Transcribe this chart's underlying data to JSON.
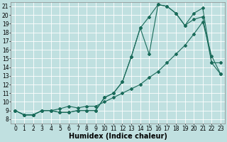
{
  "xlabel": "Humidex (Indice chaleur)",
  "bg_color": "#c0e0e0",
  "line_color": "#1a6b5a",
  "grid_color": "#ffffff",
  "xlim": [
    -0.5,
    23.5
  ],
  "ylim": [
    7.5,
    21.5
  ],
  "xticks": [
    0,
    1,
    2,
    3,
    4,
    5,
    6,
    7,
    8,
    9,
    10,
    11,
    12,
    13,
    14,
    15,
    16,
    17,
    18,
    19,
    20,
    21,
    22,
    23
  ],
  "yticks": [
    8,
    9,
    10,
    11,
    12,
    13,
    14,
    15,
    16,
    17,
    18,
    19,
    20,
    21
  ],
  "line1_x": [
    0,
    1,
    2,
    3,
    4,
    5,
    6,
    7,
    8,
    9,
    10,
    11,
    12,
    13,
    14,
    15,
    16,
    17,
    18,
    19,
    20,
    21,
    22,
    23
  ],
  "line1_y": [
    9.0,
    8.5,
    8.5,
    9.0,
    9.0,
    8.8,
    8.8,
    9.0,
    9.0,
    9.0,
    10.5,
    11.0,
    12.3,
    15.2,
    18.5,
    19.8,
    21.2,
    21.0,
    20.2,
    18.8,
    19.5,
    19.8,
    14.5,
    13.2
  ],
  "line2_x": [
    0,
    1,
    2,
    3,
    4,
    5,
    6,
    7,
    8,
    9,
    10,
    11,
    12,
    13,
    14,
    15,
    16,
    17,
    18,
    19,
    20,
    21,
    22,
    23
  ],
  "line2_y": [
    9.0,
    8.5,
    8.5,
    9.0,
    9.0,
    8.8,
    8.8,
    9.0,
    9.0,
    9.0,
    10.5,
    11.0,
    12.3,
    15.2,
    18.5,
    15.5,
    21.2,
    21.0,
    20.2,
    18.8,
    20.2,
    20.8,
    14.5,
    14.5
  ],
  "line3_x": [
    0,
    1,
    2,
    3,
    4,
    5,
    6,
    7,
    8,
    9,
    10,
    11,
    12,
    13,
    14,
    15,
    16,
    17,
    18,
    19,
    20,
    21,
    22,
    23
  ],
  "line3_y": [
    9.0,
    8.5,
    8.5,
    9.0,
    9.0,
    9.2,
    9.5,
    9.3,
    9.5,
    9.5,
    10.0,
    10.5,
    11.0,
    11.5,
    12.0,
    12.8,
    13.5,
    14.5,
    15.5,
    16.5,
    17.8,
    19.2,
    15.3,
    13.2
  ],
  "marker": "D",
  "markersize": 2.0,
  "linewidth": 0.8,
  "xlabel_fontsize": 7,
  "tick_fontsize": 5.5
}
